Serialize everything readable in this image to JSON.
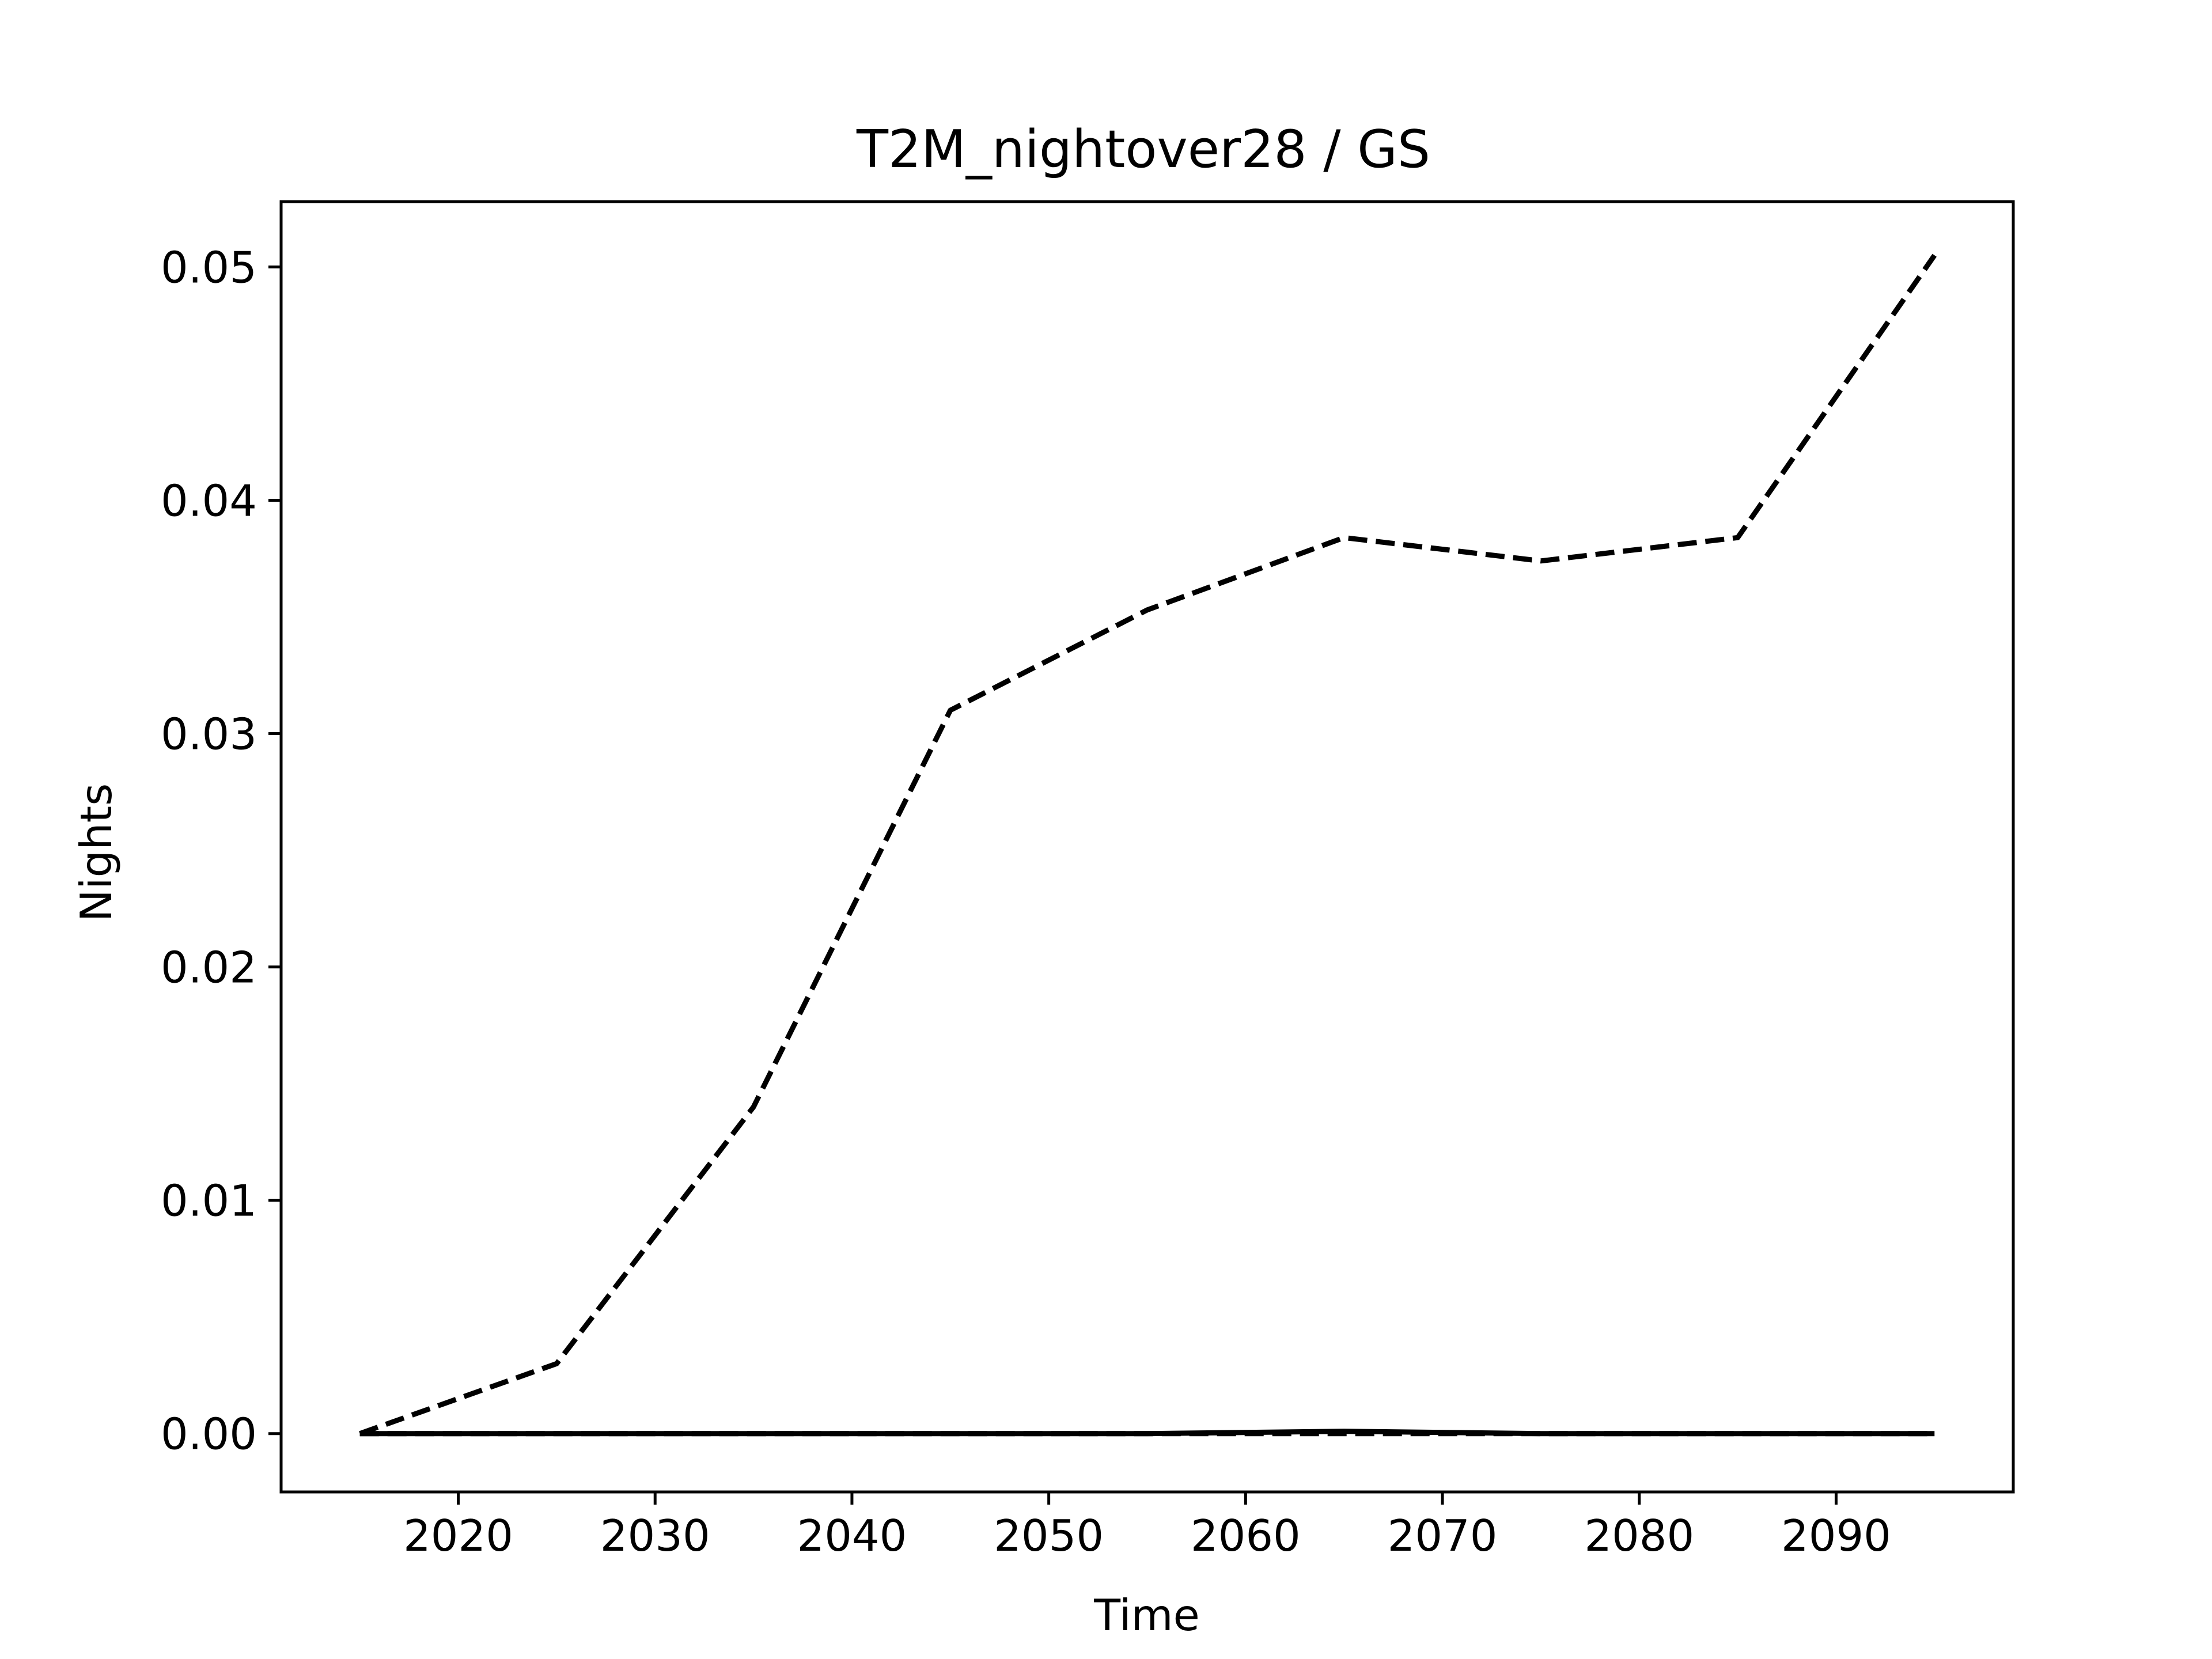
{
  "chart_data": {
    "type": "line",
    "title": "T2M_nightover28 / GS",
    "xlabel": "Time",
    "ylabel": "Nights",
    "xlim": [
      2011,
      2099
    ],
    "ylim": [
      -0.0025,
      0.0528
    ],
    "x_ticks": [
      2020,
      2030,
      2040,
      2050,
      2060,
      2070,
      2080,
      2090
    ],
    "y_ticks": [
      0.0,
      0.01,
      0.02,
      0.03,
      0.04,
      0.05
    ],
    "y_tick_labels": [
      "0.00",
      "0.01",
      "0.02",
      "0.03",
      "0.04",
      "0.05"
    ],
    "grid": false,
    "legend": "none",
    "series": [
      {
        "style": "dashed",
        "color": "#000000",
        "x": [
          2015,
          2025,
          2035,
          2045,
          2055,
          2065,
          2075,
          2085,
          2095
        ],
        "y": [
          0.0,
          0.003,
          0.014,
          0.031,
          0.0353,
          0.0384,
          0.0374,
          0.0384,
          0.0505
        ]
      },
      {
        "style": "solid",
        "color": "#000000",
        "x": [
          2015,
          2025,
          2035,
          2045,
          2055,
          2065,
          2075,
          2085,
          2095
        ],
        "y": [
          0.0,
          0.0,
          0.0,
          0.0,
          0.0,
          0.0001,
          0.0,
          0.0,
          0.0
        ]
      },
      {
        "style": "dashed",
        "color": "#000000",
        "x": [
          2015,
          2025,
          2035,
          2045,
          2055,
          2065,
          2075,
          2085,
          2095
        ],
        "y": [
          0.0,
          0.0,
          0.0,
          0.0,
          0.0,
          0.0,
          0.0,
          0.0,
          0.0
        ]
      }
    ]
  }
}
